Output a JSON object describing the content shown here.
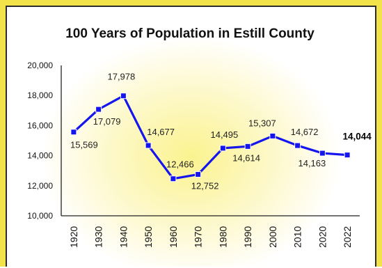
{
  "chart_data": {
    "type": "line",
    "title": "100 Years of Population in Estill County",
    "xlabel": "",
    "ylabel": "",
    "ylim": [
      10000,
      20000
    ],
    "y_ticks": [
      "10,000",
      "12,000",
      "14,000",
      "16,000",
      "18,000",
      "20,000"
    ],
    "y_tick_values": [
      10000,
      12000,
      14000,
      16000,
      18000,
      20000
    ],
    "categories": [
      "1920",
      "1930",
      "1940",
      "1950",
      "1960",
      "1970",
      "1980",
      "1990",
      "2000",
      "2010",
      "2020",
      "2022"
    ],
    "values": [
      15569,
      17079,
      17978,
      14677,
      12466,
      12752,
      14495,
      14614,
      15307,
      14672,
      14163,
      14044
    ],
    "data_labels": [
      "15,569",
      "17,079",
      "17,978",
      "14,677",
      "12,466",
      "12,752",
      "14,495",
      "14,614",
      "15,307",
      "14,672",
      "14,163",
      "14,044"
    ],
    "line_color": "#1515ee",
    "marker": "square",
    "grid": false,
    "legend": "none"
  },
  "colors": {
    "frame": "#f2e34a",
    "glow": "#fbf38f",
    "line": "#1515ee"
  }
}
